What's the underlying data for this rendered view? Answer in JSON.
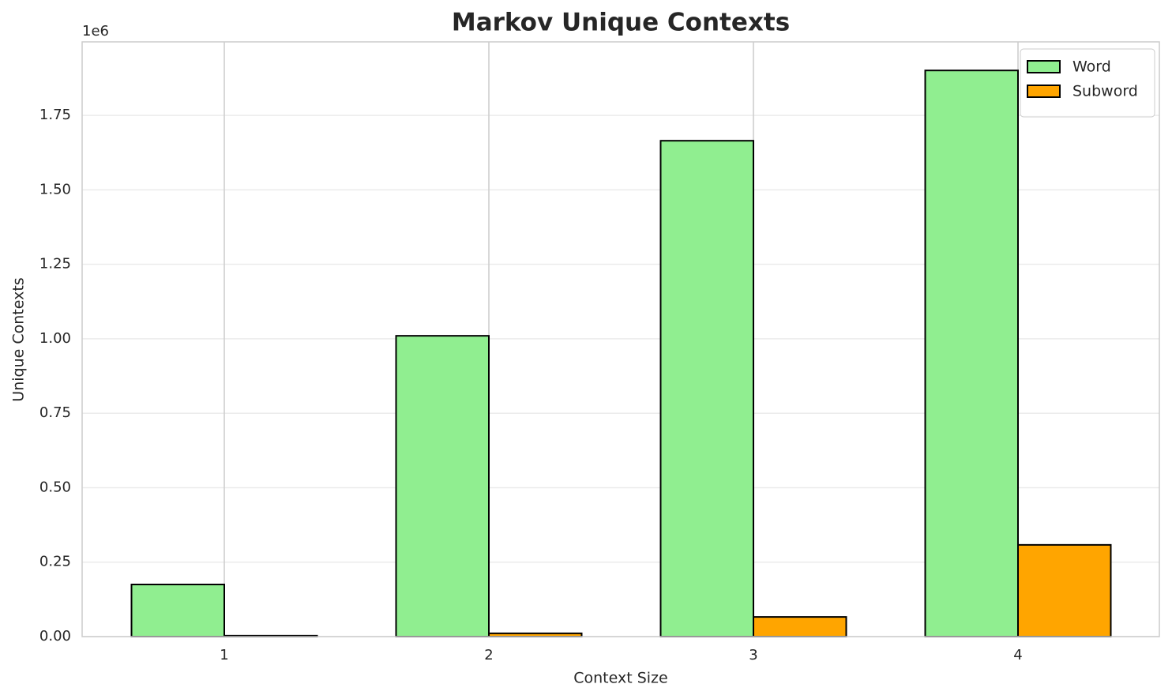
{
  "chart_data": {
    "type": "bar",
    "title": "Markov Unique Contexts",
    "x_label": "Context Size",
    "y_label": "Unique Contexts",
    "y_offset_label": "1e6",
    "categories": [
      "1",
      "2",
      "3",
      "4"
    ],
    "series": [
      {
        "name": "Word",
        "color": "#90ee90",
        "values": [
          0.175,
          1.01,
          1.665,
          1.901
        ]
      },
      {
        "name": "Subword",
        "color": "#ffa500",
        "values": [
          0.003,
          0.011,
          0.066,
          0.308
        ]
      }
    ],
    "ylim": [
      0,
      1.997
    ],
    "yticks": [
      {
        "value": 0,
        "label": "0.00"
      },
      0.25,
      {
        "value": 0.5,
        "label": "0.50"
      },
      0.75,
      {
        "value": 1,
        "label": "1.00"
      },
      1.25,
      {
        "value": 1.5,
        "label": "1.50"
      },
      1.75
    ],
    "grid": true,
    "legend": "upper right"
  }
}
